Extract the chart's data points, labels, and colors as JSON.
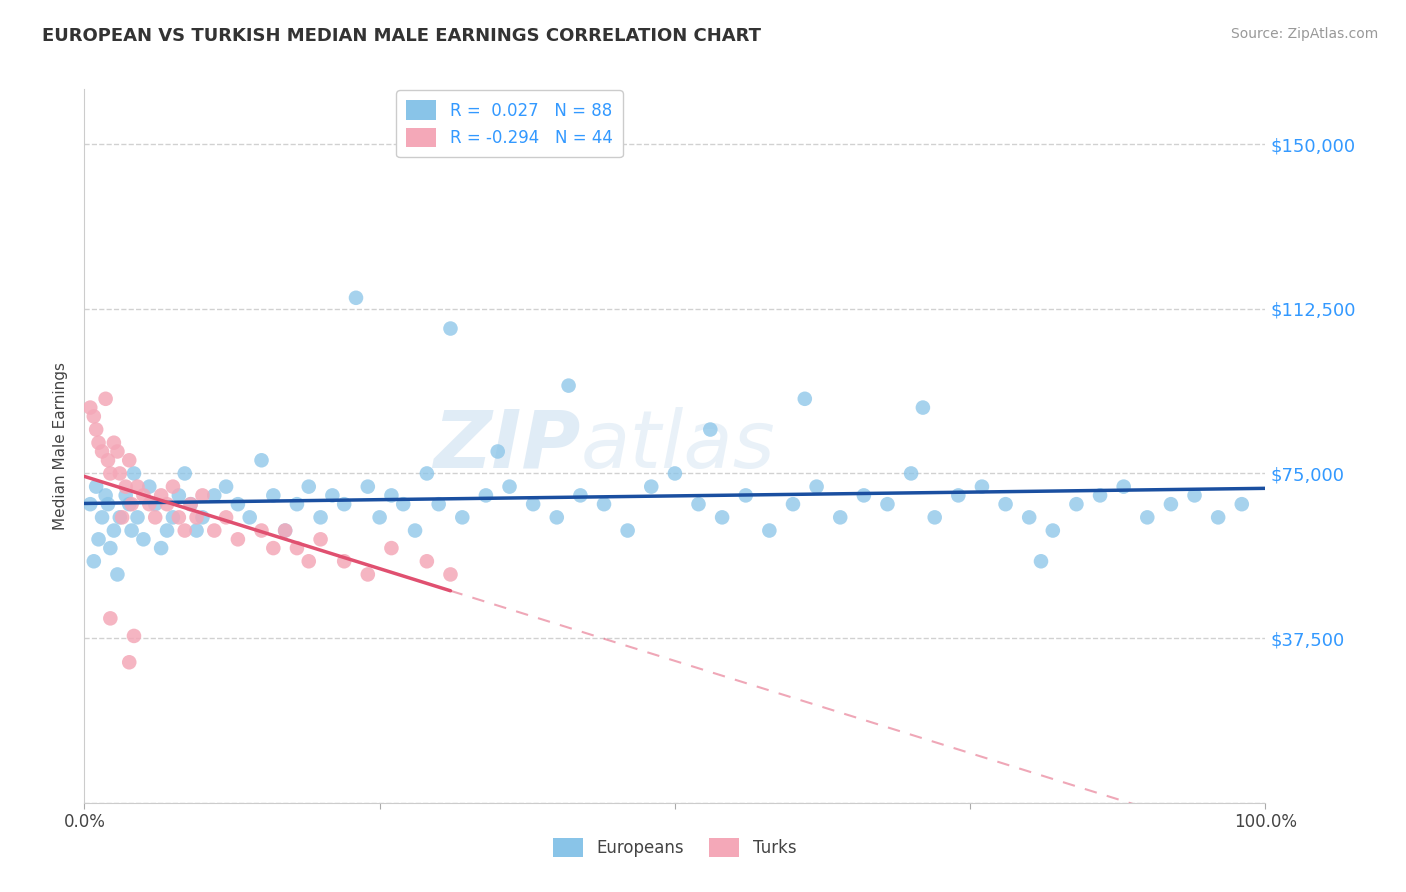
{
  "title": "EUROPEAN VS TURKISH MEDIAN MALE EARNINGS CORRELATION CHART",
  "source": "Source: ZipAtlas.com",
  "ylabel": "Median Male Earnings",
  "yticks": [
    0,
    37500,
    75000,
    112500,
    150000
  ],
  "ytick_labels": [
    "",
    "$37,500",
    "$75,000",
    "$112,500",
    "$150,000"
  ],
  "xlim": [
    0,
    1.0
  ],
  "ylim": [
    0,
    162500
  ],
  "blue_color": "#89C4E8",
  "pink_color": "#F4A8B8",
  "blue_line_color": "#1A4FA0",
  "pink_line_color": "#E05070",
  "label_color": "#3399FF",
  "title_color": "#333333",
  "source_color": "#999999",
  "grid_color": "#CCCCCC",
  "europeans_label": "Europeans",
  "turks_label": "Turks",
  "legend_r_eu": "0.027",
  "legend_n_eu": "88",
  "legend_r_turk": "-0.294",
  "legend_n_turk": "44",
  "watermark_zip": "ZIP",
  "watermark_atlas": "atlas",
  "eu_x": [
    0.005,
    0.008,
    0.01,
    0.012,
    0.015,
    0.018,
    0.02,
    0.022,
    0.025,
    0.028,
    0.03,
    0.035,
    0.038,
    0.04,
    0.042,
    0.045,
    0.05,
    0.055,
    0.06,
    0.065,
    0.07,
    0.075,
    0.08,
    0.085,
    0.09,
    0.095,
    0.1,
    0.11,
    0.12,
    0.13,
    0.14,
    0.15,
    0.16,
    0.17,
    0.18,
    0.19,
    0.2,
    0.21,
    0.22,
    0.24,
    0.25,
    0.26,
    0.27,
    0.28,
    0.29,
    0.3,
    0.32,
    0.34,
    0.36,
    0.38,
    0.4,
    0.42,
    0.44,
    0.46,
    0.48,
    0.5,
    0.52,
    0.54,
    0.56,
    0.58,
    0.6,
    0.62,
    0.64,
    0.66,
    0.68,
    0.7,
    0.72,
    0.74,
    0.76,
    0.78,
    0.8,
    0.82,
    0.84,
    0.86,
    0.88,
    0.9,
    0.92,
    0.94,
    0.96,
    0.98,
    0.23,
    0.31,
    0.35,
    0.41,
    0.53,
    0.61,
    0.71,
    0.81
  ],
  "eu_y": [
    68000,
    55000,
    72000,
    60000,
    65000,
    70000,
    68000,
    58000,
    62000,
    52000,
    65000,
    70000,
    68000,
    62000,
    75000,
    65000,
    60000,
    72000,
    68000,
    58000,
    62000,
    65000,
    70000,
    75000,
    68000,
    62000,
    65000,
    70000,
    72000,
    68000,
    65000,
    78000,
    70000,
    62000,
    68000,
    72000,
    65000,
    70000,
    68000,
    72000,
    65000,
    70000,
    68000,
    62000,
    75000,
    68000,
    65000,
    70000,
    72000,
    68000,
    65000,
    70000,
    68000,
    62000,
    72000,
    75000,
    68000,
    65000,
    70000,
    62000,
    68000,
    72000,
    65000,
    70000,
    68000,
    75000,
    65000,
    70000,
    72000,
    68000,
    65000,
    62000,
    68000,
    70000,
    72000,
    65000,
    68000,
    70000,
    65000,
    68000,
    115000,
    108000,
    80000,
    95000,
    85000,
    92000,
    90000,
    55000
  ],
  "turk_x": [
    0.005,
    0.008,
    0.01,
    0.012,
    0.015,
    0.018,
    0.02,
    0.022,
    0.025,
    0.028,
    0.03,
    0.035,
    0.038,
    0.04,
    0.045,
    0.05,
    0.055,
    0.06,
    0.065,
    0.07,
    0.075,
    0.08,
    0.085,
    0.09,
    0.095,
    0.1,
    0.11,
    0.12,
    0.13,
    0.15,
    0.16,
    0.17,
    0.18,
    0.19,
    0.2,
    0.22,
    0.24,
    0.26,
    0.29,
    0.31,
    0.042,
    0.022,
    0.032,
    0.038
  ],
  "turk_y": [
    90000,
    88000,
    85000,
    82000,
    80000,
    92000,
    78000,
    75000,
    82000,
    80000,
    75000,
    72000,
    78000,
    68000,
    72000,
    70000,
    68000,
    65000,
    70000,
    68000,
    72000,
    65000,
    62000,
    68000,
    65000,
    70000,
    62000,
    65000,
    60000,
    62000,
    58000,
    62000,
    58000,
    55000,
    60000,
    55000,
    52000,
    58000,
    55000,
    52000,
    38000,
    42000,
    65000,
    32000
  ]
}
